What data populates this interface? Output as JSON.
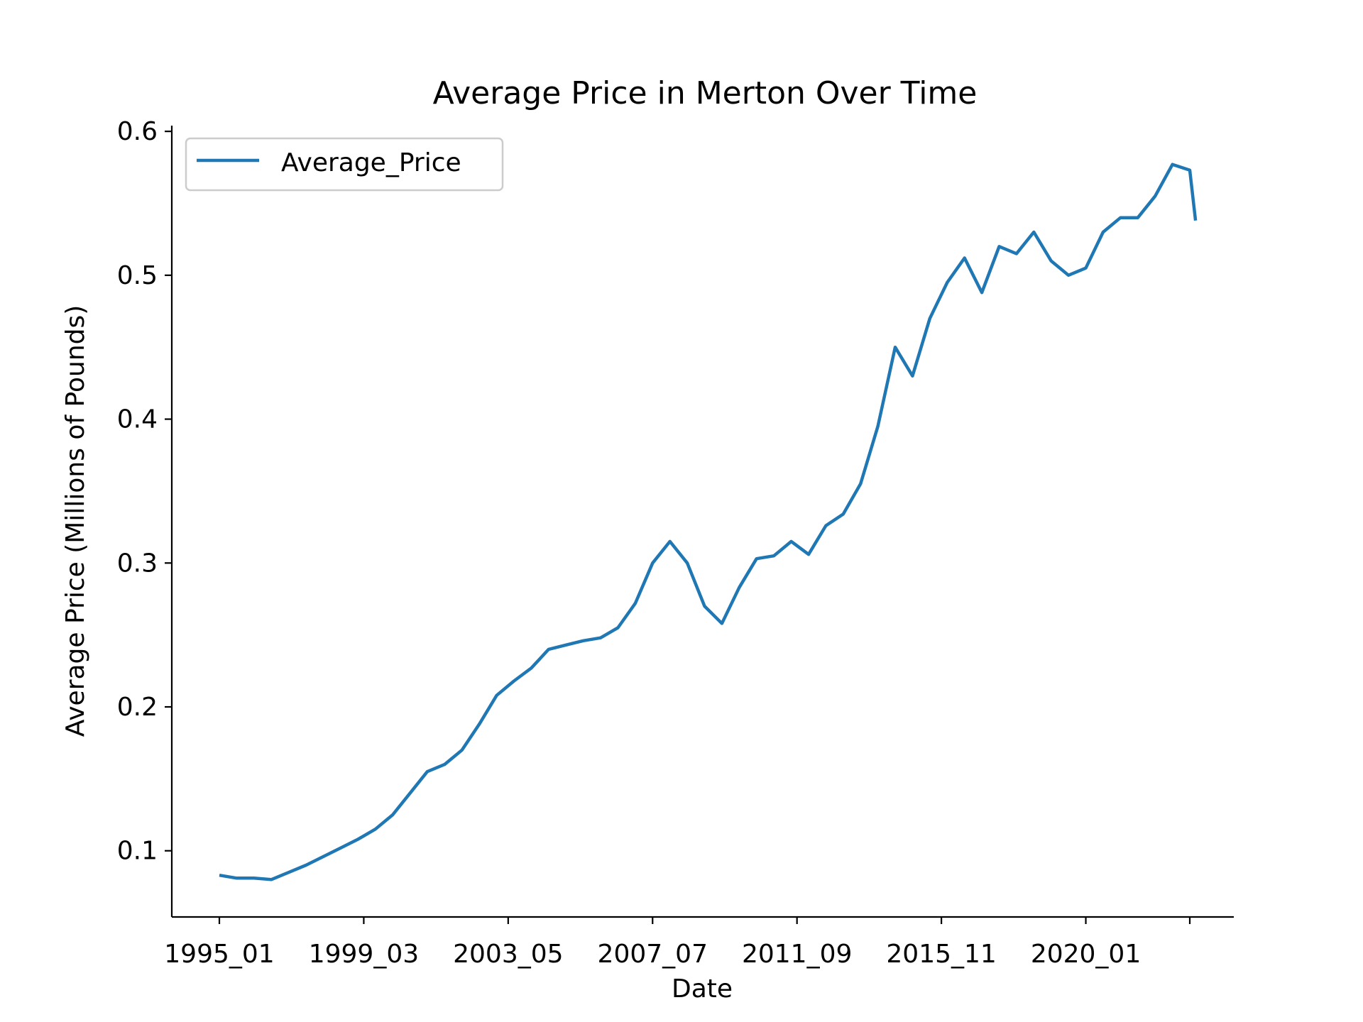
{
  "colors": {
    "line": "#1f77b4",
    "axis": "#000000",
    "legend_border": "#cccccc"
  },
  "chart_data": {
    "type": "line",
    "title": "Average Price in Merton Over Time",
    "xlabel": "Date",
    "ylabel": "Average Price (Millions of Pounds)",
    "x_tick_labels": [
      "1995_01",
      "1999_03",
      "2003_05",
      "2007_07",
      "2011_09",
      "2015_11",
      "2020_01"
    ],
    "y_tick_labels": [
      "0.1",
      "0.2",
      "0.3",
      "0.4",
      "0.5",
      "0.6"
    ],
    "x_range": [
      "1995_01",
      "2023_01"
    ],
    "ylim": [
      0.054,
      0.604
    ],
    "grid": false,
    "legend_position": "top-left",
    "series": [
      {
        "name": "Average_Price",
        "points": [
          [
            "1995_01",
            0.083
          ],
          [
            "1995_07",
            0.081
          ],
          [
            "1996_01",
            0.081
          ],
          [
            "1996_07",
            0.08
          ],
          [
            "1997_01",
            0.085
          ],
          [
            "1997_07",
            0.09
          ],
          [
            "1998_01",
            0.096
          ],
          [
            "1998_07",
            0.102
          ],
          [
            "1999_01",
            0.108
          ],
          [
            "1999_07",
            0.115
          ],
          [
            "2000_01",
            0.125
          ],
          [
            "2000_07",
            0.14
          ],
          [
            "2001_01",
            0.155
          ],
          [
            "2001_07",
            0.16
          ],
          [
            "2002_01",
            0.17
          ],
          [
            "2002_07",
            0.188
          ],
          [
            "2003_01",
            0.208
          ],
          [
            "2003_07",
            0.218
          ],
          [
            "2004_01",
            0.227
          ],
          [
            "2004_07",
            0.24
          ],
          [
            "2005_01",
            0.243
          ],
          [
            "2005_07",
            0.246
          ],
          [
            "2006_01",
            0.248
          ],
          [
            "2006_07",
            0.255
          ],
          [
            "2007_01",
            0.272
          ],
          [
            "2007_07",
            0.3
          ],
          [
            "2008_01",
            0.315
          ],
          [
            "2008_07",
            0.3
          ],
          [
            "2009_01",
            0.27
          ],
          [
            "2009_07",
            0.258
          ],
          [
            "2010_01",
            0.283
          ],
          [
            "2010_07",
            0.303
          ],
          [
            "2011_01",
            0.305
          ],
          [
            "2011_07",
            0.315
          ],
          [
            "2012_01",
            0.306
          ],
          [
            "2012_07",
            0.326
          ],
          [
            "2013_01",
            0.334
          ],
          [
            "2013_07",
            0.355
          ],
          [
            "2014_01",
            0.395
          ],
          [
            "2014_07",
            0.45
          ],
          [
            "2015_01",
            0.43
          ],
          [
            "2015_07",
            0.47
          ],
          [
            "2016_01",
            0.495
          ],
          [
            "2016_07",
            0.512
          ],
          [
            "2017_01",
            0.488
          ],
          [
            "2017_07",
            0.52
          ],
          [
            "2018_01",
            0.515
          ],
          [
            "2018_07",
            0.53
          ],
          [
            "2019_01",
            0.51
          ],
          [
            "2019_07",
            0.5
          ],
          [
            "2020_01",
            0.505
          ],
          [
            "2020_07",
            0.53
          ],
          [
            "2021_01",
            0.54
          ],
          [
            "2021_07",
            0.54
          ],
          [
            "2022_01",
            0.555
          ],
          [
            "2022_07",
            0.577
          ],
          [
            "2023_01",
            0.573
          ],
          [
            "2023_03",
            0.538
          ]
        ]
      }
    ]
  }
}
